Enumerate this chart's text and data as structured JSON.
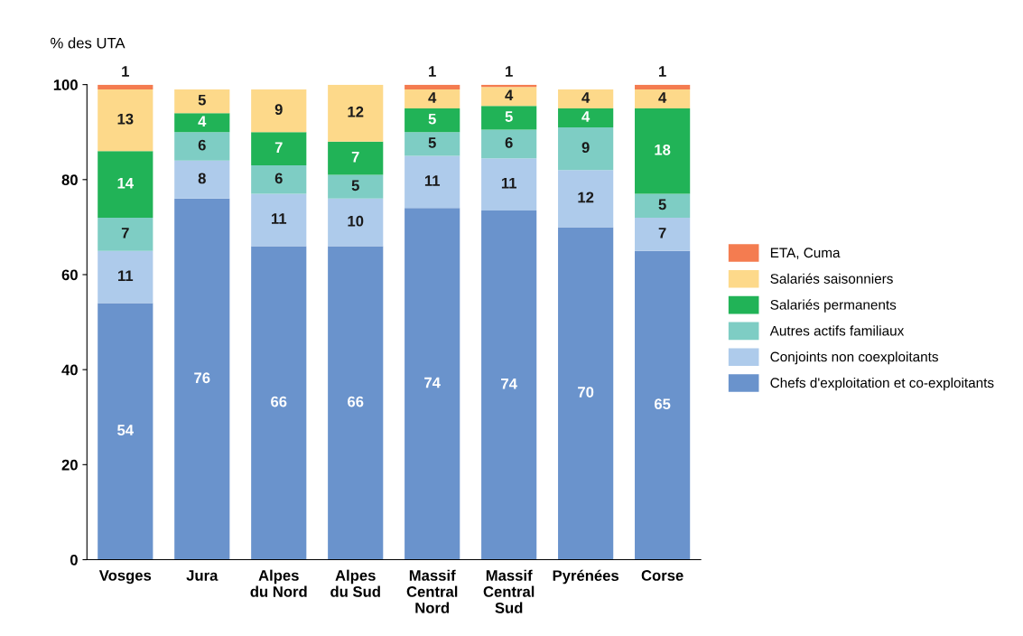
{
  "chart_data": {
    "type": "bar",
    "stacked": true,
    "ylabel": "% des UTA",
    "categories": [
      "Vosges",
      "Jura",
      "Alpes\ndu Nord",
      "Alpes\ndu Sud",
      "Massif\nCentral\nNord",
      "Massif\nCentral\nSud",
      "Pyrénées",
      "Corse"
    ],
    "series": [
      {
        "name": "Chefs d'exploitation et co-exploitants",
        "color": "#6a93cc",
        "values": [
          54,
          76,
          66,
          66,
          74,
          73.5,
          70,
          65
        ],
        "value_labels": [
          "54",
          "76",
          "66",
          "66",
          "74",
          "74",
          "70",
          "65"
        ]
      },
      {
        "name": "Conjoints non coexploitants",
        "color": "#aecbeb",
        "values": [
          11,
          8,
          11,
          10,
          11,
          11,
          12,
          7
        ]
      },
      {
        "name": "Autres actifs familiaux",
        "color": "#7ecdc4",
        "values": [
          7,
          6,
          6,
          5,
          5,
          6,
          9,
          5
        ]
      },
      {
        "name": "Salariés permanents",
        "color": "#21b357",
        "values": [
          14,
          4,
          7,
          7,
          5,
          5,
          4,
          18
        ]
      },
      {
        "name": "Salariés saisonniers",
        "color": "#fdd98a",
        "values": [
          13,
          5,
          9,
          12,
          4,
          4,
          4,
          4
        ]
      },
      {
        "name": "ETA, Cuma",
        "color": "#f47c50",
        "values": [
          1,
          null,
          null,
          null,
          1,
          0.5,
          null,
          1
        ],
        "value_labels": [
          "1",
          null,
          null,
          null,
          "1",
          "1",
          null,
          "1"
        ]
      }
    ],
    "ylim": [
      0,
      100
    ],
    "yticks": [
      0,
      20,
      40,
      60,
      80,
      100
    ],
    "grid": false,
    "legend": "right",
    "data_labels": true
  }
}
